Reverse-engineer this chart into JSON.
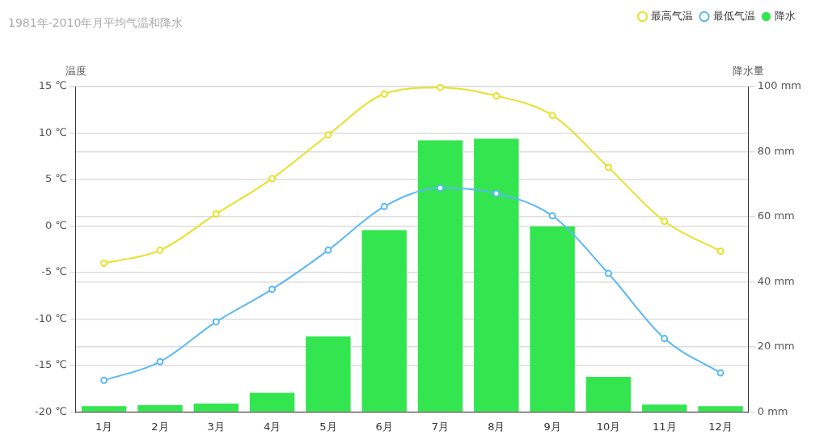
{
  "chart_data": {
    "type": "bar",
    "title": "1981年-2010年月平均气温和降水",
    "ylabel": "温度",
    "y2label": "降水量",
    "categories": [
      "1月",
      "2月",
      "3月",
      "4月",
      "5月",
      "6月",
      "7月",
      "8月",
      "9月",
      "10月",
      "11月",
      "12月"
    ],
    "series": [
      {
        "name": "最高气温",
        "type": "line",
        "color": "#e6e22a",
        "values": [
          -4.0,
          -2.6,
          1.3,
          5.1,
          9.8,
          14.2,
          14.9,
          14.0,
          11.9,
          6.3,
          0.5,
          -2.7
        ]
      },
      {
        "name": "最低气温",
        "type": "line",
        "color": "#5ab8f5",
        "values": [
          -16.6,
          -14.6,
          -10.3,
          -6.8,
          -2.6,
          2.1,
          4.1,
          3.5,
          1.1,
          -5.1,
          -12.1,
          -15.8
        ]
      },
      {
        "name": "降水",
        "axis": "y2",
        "color": "#33e64f",
        "values": [
          1.8,
          2.1,
          2.6,
          5.9,
          23.2,
          55.9,
          83.5,
          84.0,
          57.0,
          10.8,
          2.3,
          1.8
        ]
      }
    ],
    "ylim": [
      -20,
      15
    ],
    "yticks": [
      {
        "value": -20,
        "label": "-20 ℃"
      },
      {
        "value": -15,
        "label": "-15 ℃"
      },
      {
        "value": -10,
        "label": "-10 ℃"
      },
      {
        "value": -5,
        "label": "-5 ℃"
      },
      {
        "value": 0,
        "label": "0 ℃"
      },
      {
        "value": 5,
        "label": "5 ℃"
      },
      {
        "value": 10,
        "label": "10 ℃"
      },
      {
        "value": 15,
        "label": "15 ℃"
      }
    ],
    "y2lim": [
      0,
      100
    ],
    "y2ticks": [
      {
        "value": 0,
        "label": "0 mm"
      },
      {
        "value": 20,
        "label": "20 mm"
      },
      {
        "value": 40,
        "label": "40 mm"
      },
      {
        "value": 60,
        "label": "60 mm"
      },
      {
        "value": 80,
        "label": "80 mm"
      },
      {
        "value": 100,
        "label": "100 mm"
      }
    ],
    "grid": "y",
    "legend": "top right",
    "marker": "circle",
    "line_style": "solid"
  }
}
